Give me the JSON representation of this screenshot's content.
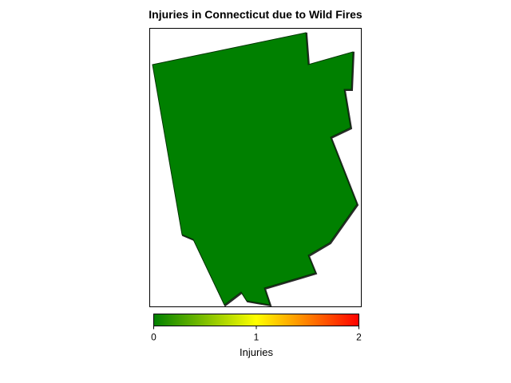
{
  "title": "Injuries in Connecticut due to Wild Fires",
  "map": {
    "region": "Connecticut",
    "fill_color": "#008000",
    "value": 0
  },
  "colorbar": {
    "title": "Injuries",
    "min": 0,
    "max": 2,
    "ticks": [
      0,
      1,
      2
    ],
    "tick_labels": [
      "0",
      "1",
      "2"
    ],
    "colors": [
      "#008000",
      "#ffff00",
      "#ff0000"
    ]
  }
}
